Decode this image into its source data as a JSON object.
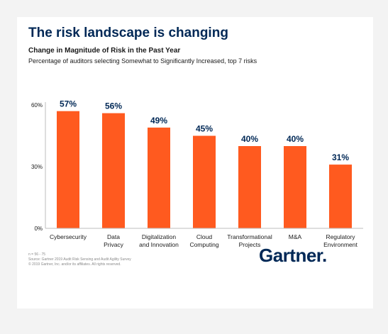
{
  "title": "The risk landscape is changing",
  "subtitle": "Change in Magnitude of Risk in the Past Year",
  "description": "Percentage of auditors selecting Somewhat to Significantly Increased, top 7 risks",
  "footnotes": {
    "sample": "n = 56 - 75",
    "source": "Source: Gartner 2019 Audit Risk Sensing and Audit Agility Survey",
    "copyright": "© 2019 Gartner, Inc. and/or its affiliates. All rights reserved."
  },
  "brand": "Gartner.",
  "colors": {
    "bar": "#ff5a1f",
    "title": "#002856",
    "axis": "#bdbdbd"
  },
  "chart_data": {
    "type": "bar",
    "categories": [
      [
        "Cybersecurity"
      ],
      [
        "Data",
        "Privacy"
      ],
      [
        "Digitalization",
        "and Innovation"
      ],
      [
        "Cloud",
        "Computing"
      ],
      [
        "Transformational",
        "Projects"
      ],
      [
        "M&A"
      ],
      [
        "Regulatory",
        "Environment"
      ]
    ],
    "values": [
      57,
      56,
      49,
      45,
      40,
      40,
      31
    ],
    "value_labels": [
      "57%",
      "56%",
      "49%",
      "45%",
      "40%",
      "40%",
      "31%"
    ],
    "yticks": [
      0,
      30,
      60
    ],
    "ytick_labels": [
      "0%",
      "30%",
      "60%"
    ],
    "ylim": [
      0,
      60
    ],
    "grid": false
  }
}
